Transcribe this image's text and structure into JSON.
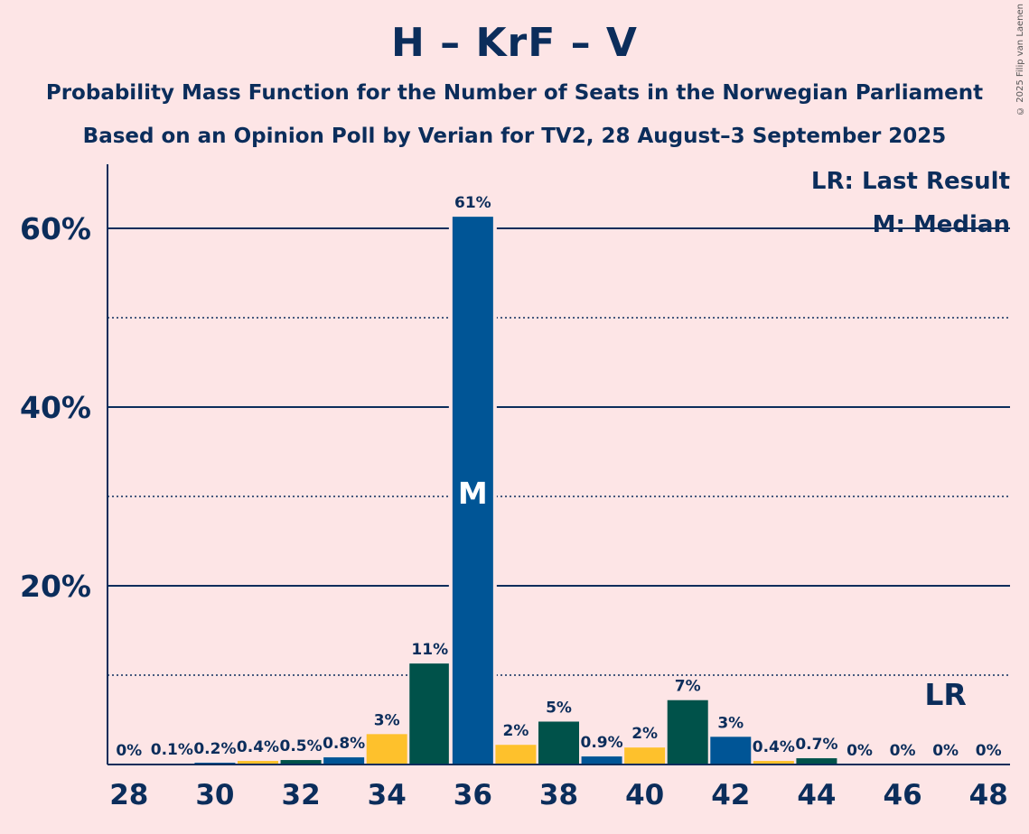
{
  "title": "H – KrF – V",
  "subtitle_1": "Probability Mass Function for the Number of Seats in the Norwegian Parliament",
  "subtitle_2": "Based on an Opinion Poll by Verian for TV2, 28 August–3 September 2025",
  "copyright": "© 2025 Filip van Laenen",
  "legend": {
    "last_result": "LR: Last Result",
    "median": "M: Median"
  },
  "markers": {
    "median_label": "M",
    "median_seat": 36,
    "last_result_label": "LR",
    "last_result_seat": 47
  },
  "colors": {
    "background": "#FDE5E6",
    "text": "#0B2D5B",
    "H": "#005596",
    "KrF": "#FEC12C",
    "V": "#00524A"
  },
  "chart_data": {
    "type": "bar",
    "x": [
      28,
      29,
      30,
      31,
      32,
      33,
      34,
      35,
      36,
      37,
      38,
      39,
      40,
      41,
      42,
      43,
      44,
      45,
      46,
      47,
      48
    ],
    "values": [
      0,
      0.1,
      0.2,
      0.4,
      0.5,
      0.8,
      3.4,
      11.3,
      61.3,
      2.2,
      4.8,
      0.9,
      1.9,
      7.2,
      3.1,
      0.4,
      0.7,
      0,
      0,
      0,
      0
    ],
    "labels": [
      "0%",
      "0.1%",
      "0.2%",
      "0.4%",
      "0.5%",
      "0.8%",
      "3%",
      "11%",
      "61%",
      "2%",
      "5%",
      "0.9%",
      "2%",
      "7%",
      "3%",
      "0.4%",
      "0.7%",
      "0%",
      "0%",
      "0%",
      "0%"
    ],
    "bar_colors": [
      "V",
      "H",
      "H",
      "KrF",
      "V",
      "H",
      "KrF",
      "V",
      "H",
      "KrF",
      "V",
      "H",
      "KrF",
      "V",
      "H",
      "KrF",
      "V",
      "H",
      "KrF",
      "V",
      "H"
    ],
    "x_ticks": [
      "28",
      "30",
      "32",
      "34",
      "36",
      "38",
      "40",
      "42",
      "44",
      "46",
      "48"
    ],
    "y_ticks": [
      {
        "value": 20,
        "label": "20%"
      },
      {
        "value": 40,
        "label": "40%"
      },
      {
        "value": 60,
        "label": "60%"
      }
    ],
    "y_minor_gridlines": [
      10,
      30,
      50
    ],
    "ylim": [
      0,
      67
    ],
    "xlim": [
      27.5,
      48.5
    ]
  }
}
